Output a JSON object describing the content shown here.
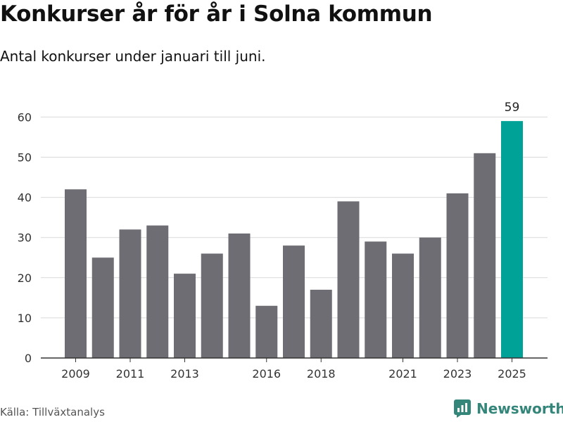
{
  "title": "Konkurser år för år i Solna kommun",
  "subtitle": "Antal konkurser under januari till juni.",
  "source": "Källa: Tillväxtanalys",
  "brand": {
    "name": "Newsworthy",
    "icon": "bar-chart-logo-icon",
    "color": "#34867a"
  },
  "colors": {
    "bar": "#6e6d73",
    "highlight": "#00a298",
    "grid": "#d9d9d9",
    "axis": "#333333"
  },
  "chart_data": {
    "type": "bar",
    "categories": [
      "2009",
      "2010",
      "2011",
      "2012",
      "2013",
      "2014",
      "2015",
      "2016",
      "2017",
      "2018",
      "2019",
      "2020",
      "2021",
      "2022",
      "2023",
      "2024",
      "2025"
    ],
    "values": [
      42,
      25,
      32,
      33,
      21,
      26,
      31,
      13,
      28,
      17,
      39,
      29,
      26,
      30,
      41,
      51,
      59
    ],
    "x_tick_labels": [
      "2009",
      "2011",
      "2013",
      "2016",
      "2018",
      "2021",
      "2023",
      "2025"
    ],
    "y_ticks": [
      0,
      10,
      20,
      30,
      40,
      50,
      60
    ],
    "ylim": [
      0,
      62
    ],
    "highlight_category": "2025",
    "data_labels": [
      {
        "category": "2025",
        "text": "59"
      }
    ],
    "grid": true,
    "legend": "none",
    "xlabel": "",
    "ylabel": ""
  }
}
